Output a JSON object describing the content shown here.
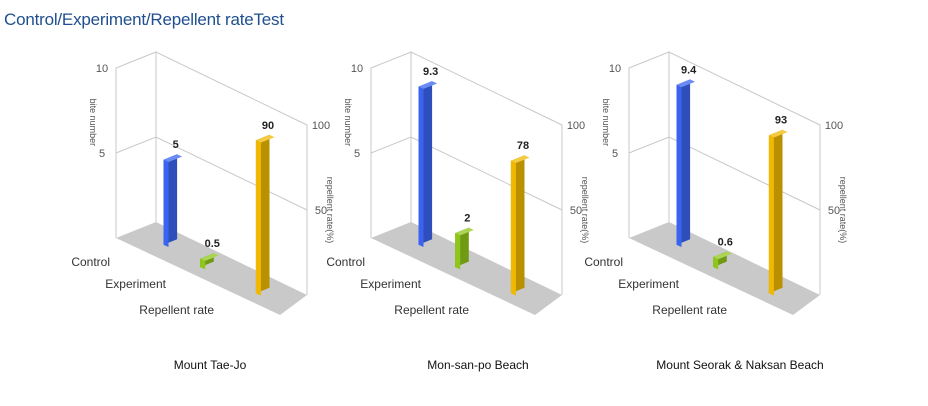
{
  "title": "Control/Experiment/Repellent rateTest",
  "colors": {
    "control": "#3a64f0",
    "experiment": "#8fc61a",
    "repellent": "#f0b800",
    "floor": "#c9c9c9",
    "grid": "#c8c8c8",
    "title": "#1f4f8f"
  },
  "chart_data": [
    {
      "type": "bar",
      "title": "Mount Tae-Jo",
      "categories": [
        "Control",
        "Experiment",
        "Repellent rate"
      ],
      "values": [
        5,
        0.5,
        90
      ],
      "value_labels": [
        "5",
        "0.5",
        "90"
      ],
      "left_axis": {
        "label": "bite number",
        "range": [
          0,
          10
        ],
        "ticks": [
          "5",
          "10"
        ],
        "applies_to": [
          "Control",
          "Experiment"
        ]
      },
      "right_axis": {
        "label": "repellent rate(%)",
        "range": [
          0,
          100
        ],
        "ticks": [
          "50",
          "100"
        ],
        "applies_to": [
          "Repellent rate"
        ]
      }
    },
    {
      "type": "bar",
      "title": "Mon-san-po Beach",
      "categories": [
        "Control",
        "Experiment",
        "Repellent rate"
      ],
      "values": [
        9.3,
        2,
        78
      ],
      "value_labels": [
        "9.3",
        "2",
        "78"
      ],
      "left_axis": {
        "label": "bite number",
        "range": [
          0,
          10
        ],
        "ticks": [
          "5",
          "10"
        ],
        "applies_to": [
          "Control",
          "Experiment"
        ]
      },
      "right_axis": {
        "label": "repellent rate(%)",
        "range": [
          0,
          100
        ],
        "ticks": [
          "50",
          "100"
        ],
        "applies_to": [
          "Repellent rate"
        ]
      }
    },
    {
      "type": "bar",
      "title": "Mount Seorak & Naksan Beach",
      "categories": [
        "Control",
        "Experiment",
        "Repellent rate"
      ],
      "values": [
        9.4,
        0.6,
        93
      ],
      "value_labels": [
        "9.4",
        "0.6",
        "93"
      ],
      "left_axis": {
        "label": "bite number",
        "range": [
          0,
          10
        ],
        "ticks": [
          "5",
          "10"
        ],
        "applies_to": [
          "Control",
          "Experiment"
        ]
      },
      "right_axis": {
        "label": "repellent rate(%)",
        "range": [
          0,
          100
        ],
        "ticks": [
          "50",
          "100"
        ],
        "applies_to": [
          "Repellent rate"
        ]
      }
    }
  ]
}
